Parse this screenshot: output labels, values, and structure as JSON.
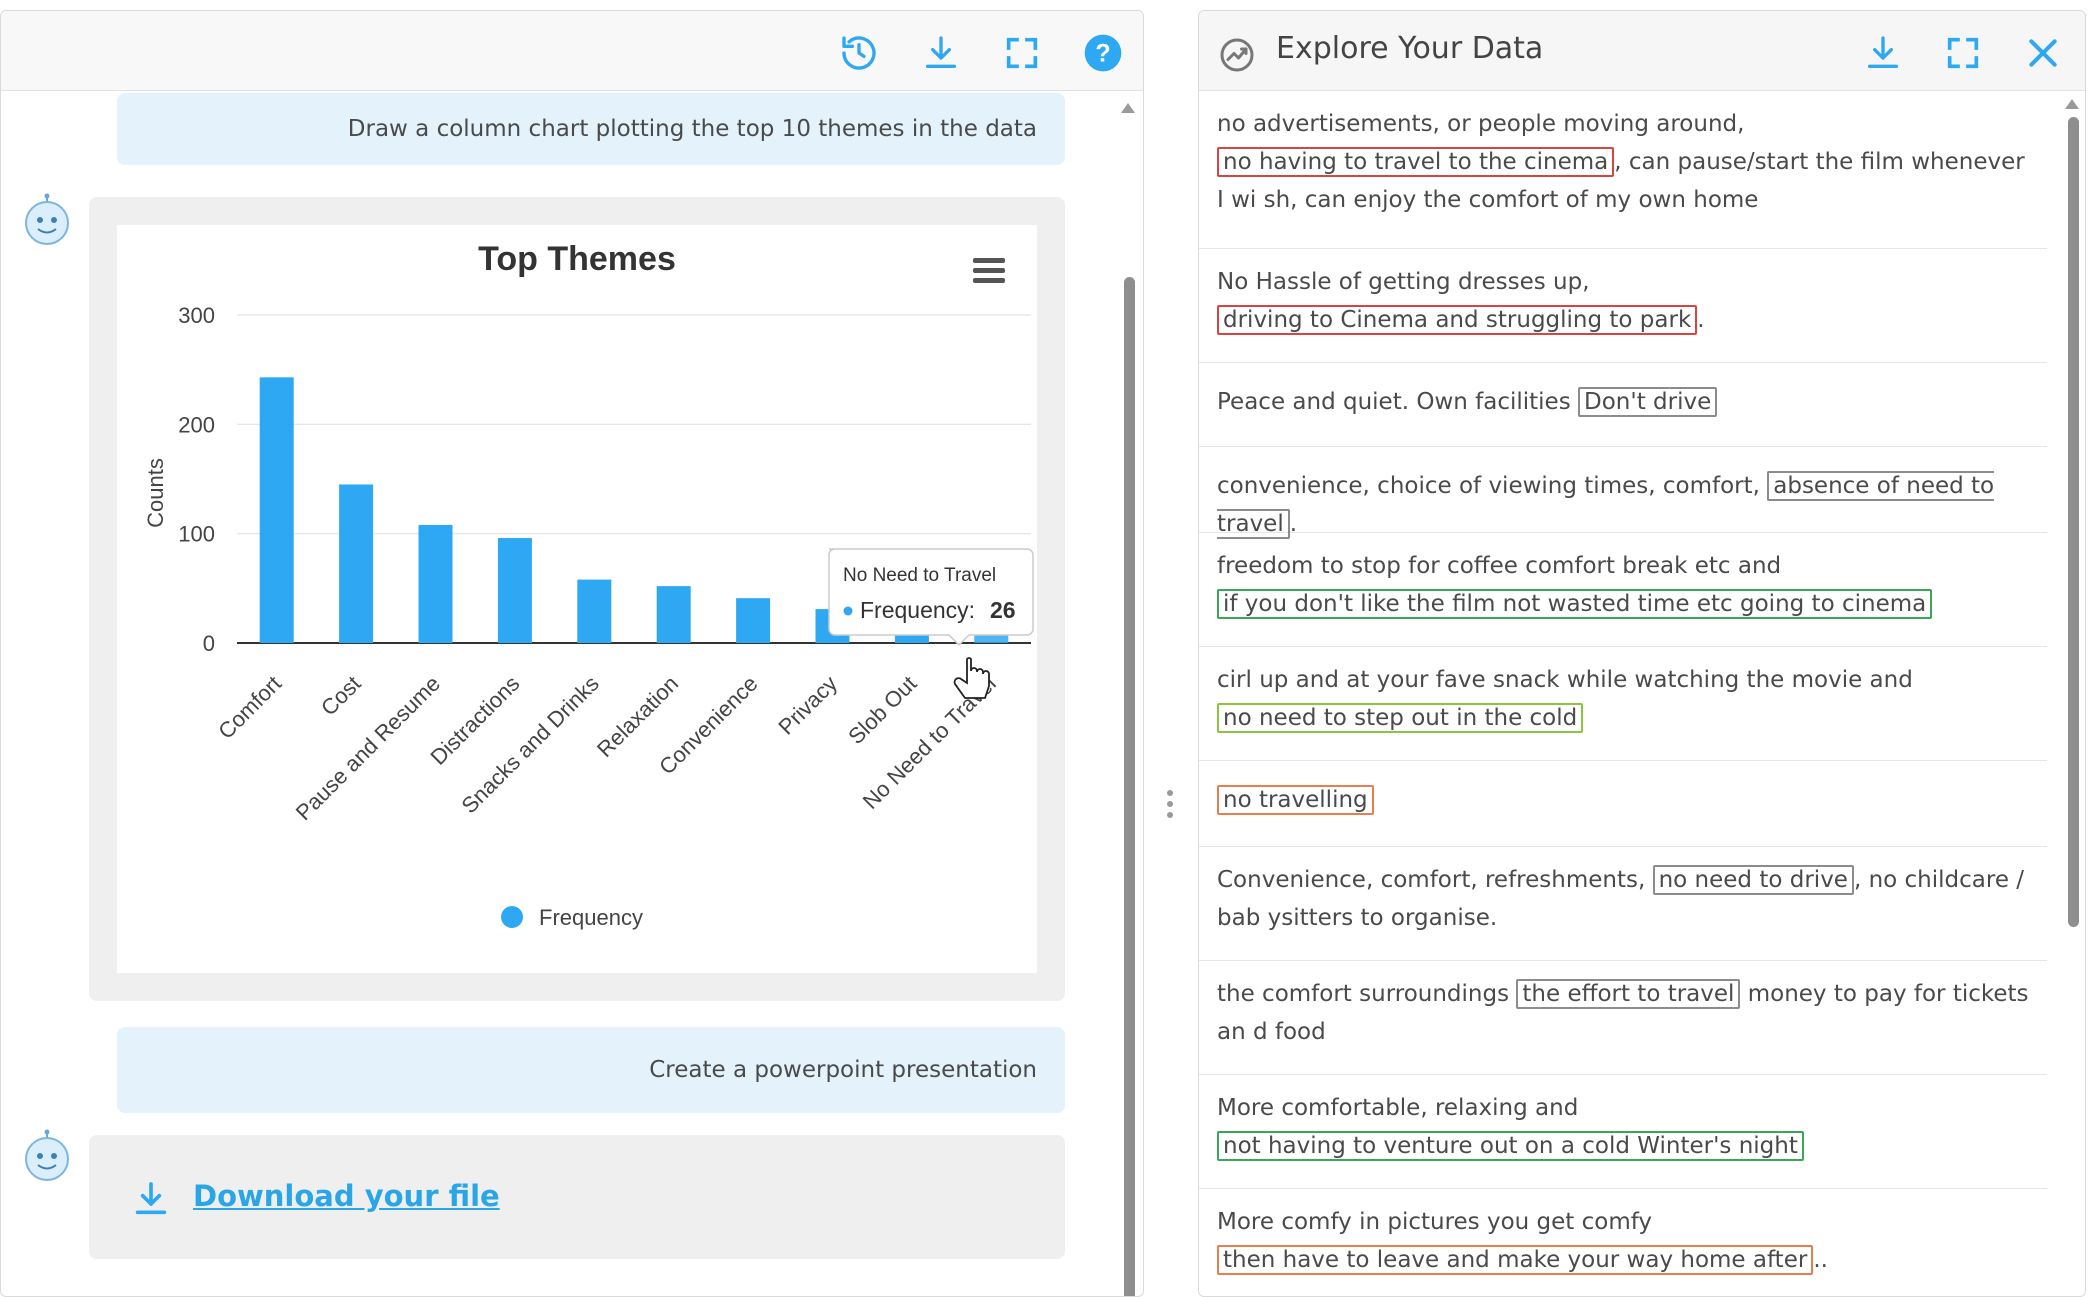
{
  "left_panel": {
    "toolbar": {
      "history_icon": "history-icon",
      "download_icon": "download-icon",
      "fullscreen_icon": "fullscreen-icon",
      "help_icon": "help-icon"
    },
    "messages": {
      "user_1": "Draw a column chart plotting the top 10 themes in the data",
      "user_2": "Create a powerpoint presentation",
      "download_link": "Download your file"
    }
  },
  "chart_data": {
    "type": "bar",
    "title": "Top Themes",
    "ylabel": "Counts",
    "xlabel": "",
    "ylim": [
      0,
      300
    ],
    "yticks": [
      0,
      100,
      200,
      300
    ],
    "grid": true,
    "legend_position": "bottom",
    "categories": [
      "Comfort",
      "Cost",
      "Pause and Resume",
      "Distractions",
      "Snacks and Drinks",
      "Relaxation",
      "Convenience",
      "Privacy",
      "Slob Out",
      "No Need to Travel"
    ],
    "series": [
      {
        "name": "Frequency",
        "values": [
          243,
          145,
          108,
          96,
          58,
          52,
          41,
          31,
          27,
          26
        ]
      }
    ],
    "tooltip": {
      "category": "No Need to Travel",
      "label": "Frequency:",
      "value": "26"
    },
    "color": "#2ea8f2",
    "menu_icon": "hamburger-menu-icon"
  },
  "right_panel": {
    "title": "Explore Your Data",
    "items": [
      {
        "pre": "no advertisements, or people moving around, ",
        "hl": "no having to travel to the cinema",
        "color": "red",
        "post": ", can pause/start the film whenever I wi sh, can enjoy the comfort of my own home"
      },
      {
        "pre": "No Hassle of getting dresses up, ",
        "hl": "driving to Cinema and struggling to park",
        "color": "red",
        "post": "."
      },
      {
        "pre": "Peace and quiet. Own facilities ",
        "hl": "Don't drive",
        "color": "gray",
        "post": ""
      },
      {
        "pre": "convenience, choice of viewing times, comfort, ",
        "hl": "absence of need to travel",
        "color": "gray",
        "post": "."
      },
      {
        "pre": "freedom to stop for coffee comfort break etc and ",
        "hl": "if you don't like the film not wasted time etc going to cinema",
        "color": "green",
        "post": ""
      },
      {
        "pre": "cirl up and at your fave snack while watching the movie and ",
        "hl": "no need to step out in the cold",
        "color": "lime",
        "post": ""
      },
      {
        "pre": "",
        "hl": "no travelling",
        "color": "orange",
        "post": ""
      },
      {
        "pre": "Convenience, comfort, refreshments, ",
        "hl": "no need to drive",
        "color": "gray",
        "post": ", no childcare / bab ysitters to organise."
      },
      {
        "pre": "the comfort surroundings ",
        "hl": "the effort to travel",
        "color": "gray",
        "post": " money to pay for tickets an d food"
      },
      {
        "pre": "More comfortable, relaxing and ",
        "hl": "not having to venture out on a cold Winter's night",
        "color": "green",
        "post": ""
      },
      {
        "pre": "More comfy in pictures you get comfy ",
        "hl": "then have to leave and make your way home after",
        "color": "orange",
        "post": ".."
      }
    ]
  }
}
